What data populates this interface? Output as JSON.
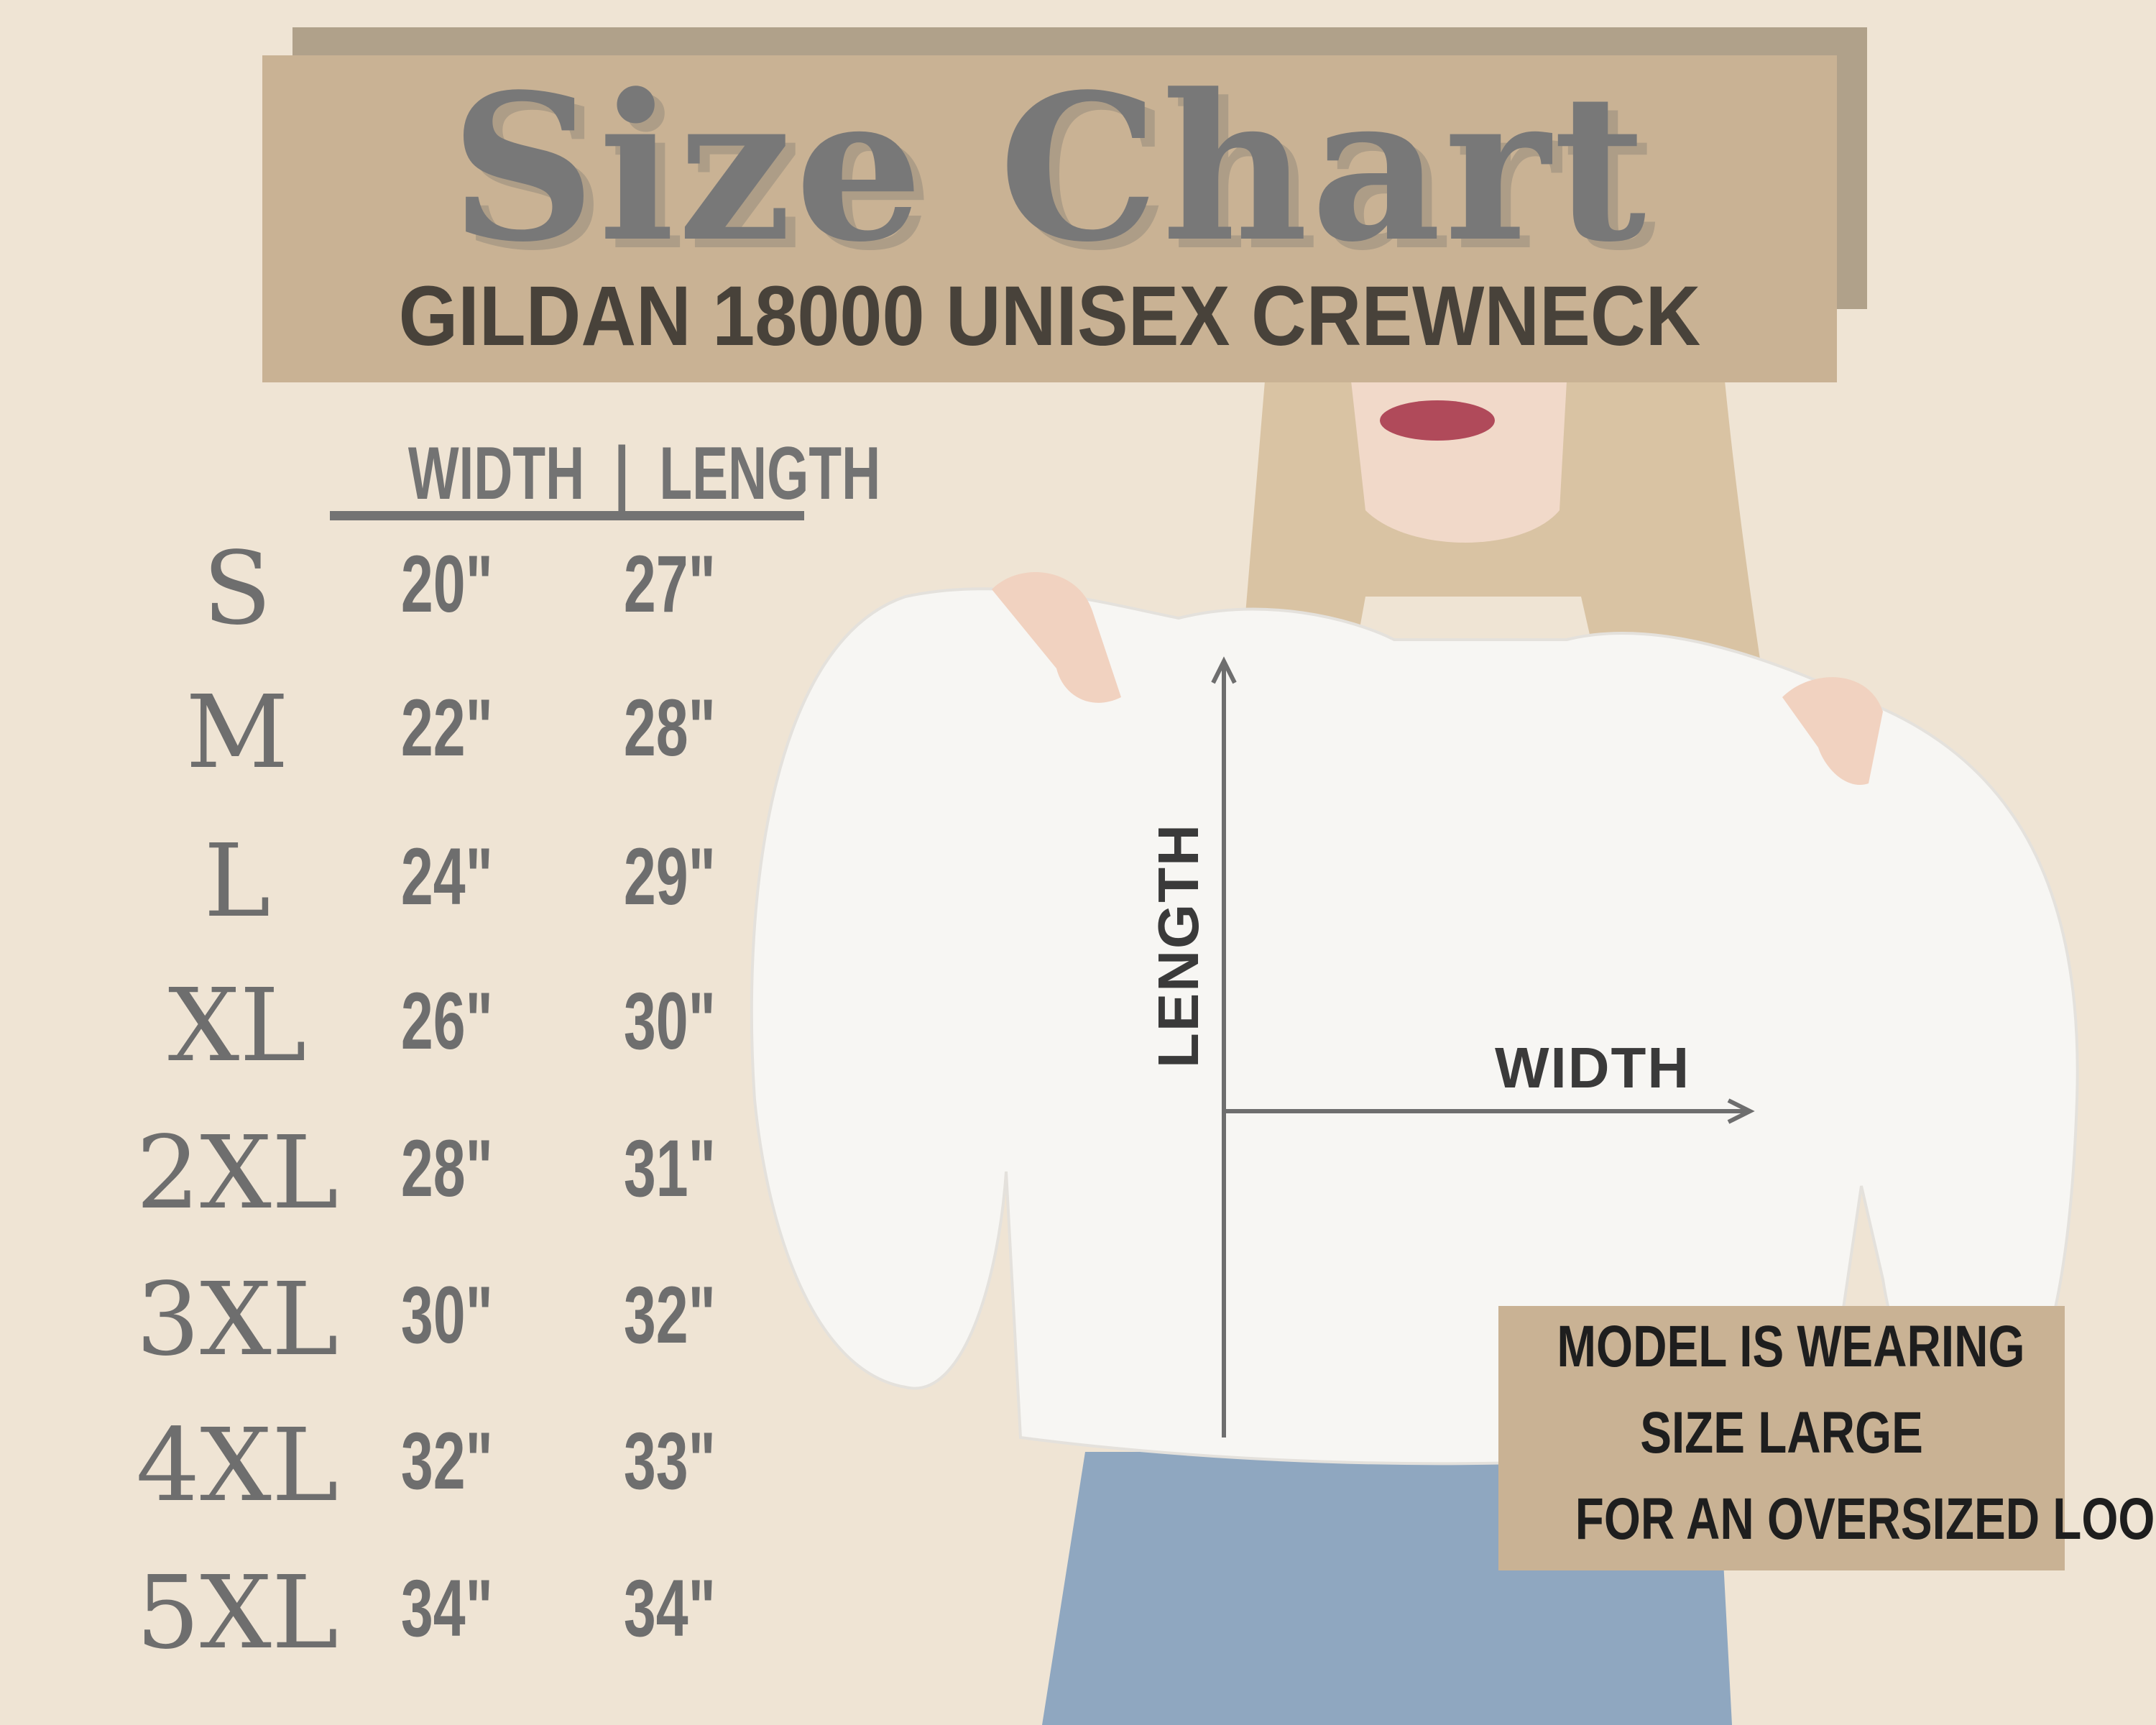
{
  "header": {
    "title": "Size Chart",
    "subtitle": "GILDAN 18000 UNISEX CREWNECK"
  },
  "table": {
    "column_header": "WIDTH  |  LENGTH",
    "columns": [
      "WIDTH",
      "LENGTH"
    ],
    "rows": [
      {
        "size": "S",
        "width": "20\"",
        "length": "27\""
      },
      {
        "size": "M",
        "width": "22\"",
        "length": "28\""
      },
      {
        "size": "L",
        "width": "24\"",
        "length": "29\""
      },
      {
        "size": "XL",
        "width": "26\"",
        "length": "30\""
      },
      {
        "size": "2XL",
        "width": "28\"",
        "length": "31\""
      },
      {
        "size": "3XL",
        "width": "30\"",
        "length": "32\""
      },
      {
        "size": "4XL",
        "width": "32\"",
        "length": "33\""
      },
      {
        "size": "5XL",
        "width": "34\"",
        "length": "34\""
      }
    ]
  },
  "diagram": {
    "length_label": "LENGTH",
    "width_label": "WIDTH"
  },
  "note": {
    "lines": [
      "MODEL IS WEARING",
      "SIZE LARGE",
      "FOR AN OVERSIZED LOOK"
    ]
  },
  "colors": {
    "background": "#efe4d4",
    "box": "#c9b294",
    "box_shadow": "#b0a18a",
    "text_gray": "#737373",
    "subtitle": "#48423a"
  }
}
